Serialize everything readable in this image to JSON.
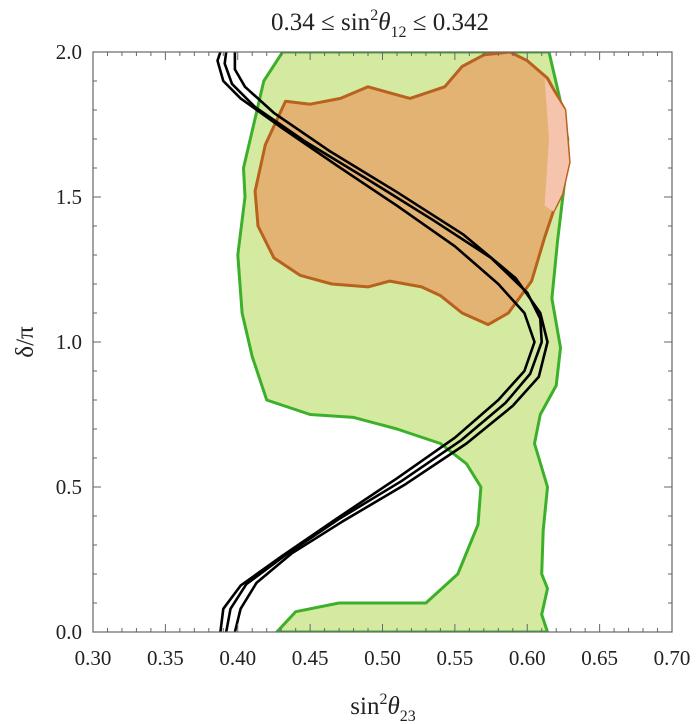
{
  "chart_data": {
    "type": "area",
    "title": {
      "main": "0.34 ≤ sin",
      "sup": "2",
      "theta": "θ",
      "sub": "12",
      "rest": " ≤ 0.342"
    },
    "xlabel": {
      "main": "sin",
      "sup": "2",
      "theta": "θ",
      "sub": "23"
    },
    "ylabel": "δ/π",
    "xlim": [
      0.3,
      0.7
    ],
    "ylim": [
      0.0,
      2.0
    ],
    "xticks": [
      "0.30",
      "0.35",
      "0.40",
      "0.45",
      "0.50",
      "0.55",
      "0.60",
      "0.65",
      "0.70"
    ],
    "xtick_values": [
      0.3,
      0.35,
      0.4,
      0.45,
      0.5,
      0.55,
      0.6,
      0.65,
      0.7
    ],
    "yticks": [
      "0.0",
      "0.5",
      "1.0",
      "1.5",
      "2.0"
    ],
    "ytick_values": [
      0.0,
      0.5,
      1.0,
      1.5,
      2.0
    ],
    "grid": false,
    "colors": {
      "green_fill": "#d4eaa0",
      "green_edge": "#3cb02a",
      "orange_fill": "#e3b374",
      "orange_edge": "#b8621e",
      "pink_fill": "#f6c4ac",
      "curve": "#000000",
      "frame": "#666666"
    },
    "series": [
      {
        "kind": "region",
        "points": [
          [
            0.427,
            0.0
          ],
          [
            0.44,
            0.07
          ],
          [
            0.47,
            0.1
          ],
          [
            0.53,
            0.1
          ],
          [
            0.552,
            0.2
          ],
          [
            0.566,
            0.37
          ],
          [
            0.568,
            0.5
          ],
          [
            0.558,
            0.58
          ],
          [
            0.54,
            0.65
          ],
          [
            0.51,
            0.7
          ],
          [
            0.48,
            0.74
          ],
          [
            0.45,
            0.75
          ],
          [
            0.42,
            0.8
          ],
          [
            0.41,
            0.95
          ],
          [
            0.403,
            1.1
          ],
          [
            0.4,
            1.3
          ],
          [
            0.405,
            1.5
          ],
          [
            0.404,
            1.6
          ],
          [
            0.411,
            1.75
          ],
          [
            0.418,
            1.9
          ],
          [
            0.431,
            2.0
          ],
          [
            0.615,
            2.0
          ],
          [
            0.622,
            1.85
          ],
          [
            0.628,
            1.7
          ],
          [
            0.627,
            1.6
          ],
          [
            0.621,
            1.35
          ],
          [
            0.617,
            1.15
          ],
          [
            0.623,
            0.98
          ],
          [
            0.62,
            0.85
          ],
          [
            0.609,
            0.75
          ],
          [
            0.605,
            0.65
          ],
          [
            0.614,
            0.5
          ],
          [
            0.611,
            0.35
          ],
          [
            0.61,
            0.2
          ],
          [
            0.614,
            0.15
          ],
          [
            0.61,
            0.06
          ],
          [
            0.614,
            0.0
          ]
        ]
      },
      {
        "kind": "region",
        "points": [
          [
            0.433,
            1.83
          ],
          [
            0.45,
            1.82
          ],
          [
            0.471,
            1.84
          ],
          [
            0.49,
            1.88
          ],
          [
            0.519,
            1.84
          ],
          [
            0.543,
            1.88
          ],
          [
            0.555,
            1.95
          ],
          [
            0.57,
            1.99
          ],
          [
            0.588,
            2.0
          ],
          [
            0.6,
            1.97
          ],
          [
            0.614,
            1.91
          ],
          [
            0.626,
            1.8
          ],
          [
            0.629,
            1.62
          ],
          [
            0.624,
            1.51
          ],
          [
            0.618,
            1.45
          ],
          [
            0.612,
            1.36
          ],
          [
            0.603,
            1.21
          ],
          [
            0.587,
            1.1
          ],
          [
            0.573,
            1.06
          ],
          [
            0.555,
            1.1
          ],
          [
            0.54,
            1.16
          ],
          [
            0.527,
            1.19
          ],
          [
            0.505,
            1.21
          ],
          [
            0.49,
            1.19
          ],
          [
            0.465,
            1.2
          ],
          [
            0.443,
            1.23
          ],
          [
            0.425,
            1.29
          ],
          [
            0.414,
            1.4
          ],
          [
            0.412,
            1.52
          ],
          [
            0.419,
            1.68
          ]
        ]
      },
      {
        "kind": "region",
        "points": [
          [
            0.612,
            1.91
          ],
          [
            0.626,
            1.8
          ],
          [
            0.629,
            1.62
          ],
          [
            0.624,
            1.51
          ],
          [
            0.618,
            1.45
          ],
          [
            0.612,
            1.47
          ],
          [
            0.615,
            1.7
          ]
        ]
      },
      {
        "kind": "curve",
        "points": [
          [
            0.388,
            2.0
          ],
          [
            0.386,
            1.97
          ],
          [
            0.39,
            1.9
          ],
          [
            0.402,
            1.84
          ],
          [
            0.43,
            1.74
          ],
          [
            0.468,
            1.61
          ],
          [
            0.51,
            1.47
          ],
          [
            0.55,
            1.33
          ],
          [
            0.58,
            1.2
          ],
          [
            0.598,
            1.1
          ],
          [
            0.605,
            1.0
          ],
          [
            0.598,
            0.9
          ],
          [
            0.58,
            0.8
          ],
          [
            0.55,
            0.67
          ],
          [
            0.51,
            0.53
          ],
          [
            0.468,
            0.39
          ],
          [
            0.43,
            0.26
          ],
          [
            0.402,
            0.16
          ],
          [
            0.39,
            0.08
          ],
          [
            0.388,
            0.0
          ]
        ]
      },
      {
        "kind": "curve",
        "points": [
          [
            0.398,
            2.0
          ],
          [
            0.398,
            1.94
          ],
          [
            0.405,
            1.88
          ],
          [
            0.425,
            1.79
          ],
          [
            0.463,
            1.66
          ],
          [
            0.509,
            1.52
          ],
          [
            0.556,
            1.37
          ],
          [
            0.592,
            1.22
          ],
          [
            0.609,
            1.1
          ],
          [
            0.614,
            1.0
          ],
          [
            0.608,
            0.88
          ],
          [
            0.59,
            0.78
          ],
          [
            0.558,
            0.65
          ],
          [
            0.516,
            0.51
          ],
          [
            0.472,
            0.38
          ],
          [
            0.437,
            0.27
          ],
          [
            0.413,
            0.17
          ],
          [
            0.402,
            0.08
          ],
          [
            0.398,
            0.0
          ]
        ]
      },
      {
        "kind": "curve",
        "points": [
          [
            0.392,
            2.0
          ],
          [
            0.391,
            1.96
          ],
          [
            0.396,
            1.89
          ],
          [
            0.412,
            1.81
          ],
          [
            0.447,
            1.69
          ],
          [
            0.49,
            1.56
          ],
          [
            0.535,
            1.42
          ],
          [
            0.575,
            1.29
          ],
          [
            0.6,
            1.17
          ],
          [
            0.609,
            1.08
          ],
          [
            0.61,
            1.0
          ],
          [
            0.602,
            0.89
          ],
          [
            0.585,
            0.79
          ],
          [
            0.554,
            0.66
          ],
          [
            0.513,
            0.52
          ],
          [
            0.47,
            0.39
          ],
          [
            0.433,
            0.265
          ],
          [
            0.406,
            0.165
          ],
          [
            0.395,
            0.08
          ],
          [
            0.392,
            0.0
          ]
        ]
      }
    ]
  }
}
